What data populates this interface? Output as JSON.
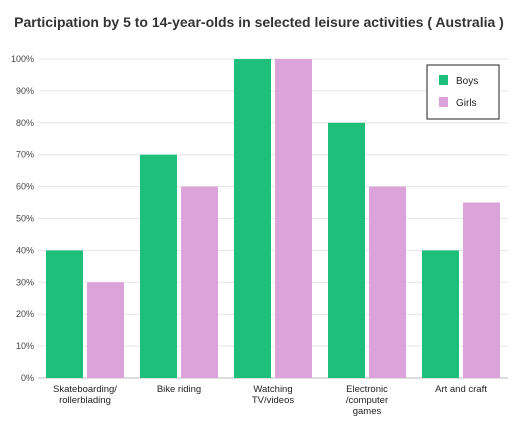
{
  "chart_data": {
    "type": "bar",
    "title": "Participation by 5 to 14-year-olds in selected leisure activities ( Australia )",
    "xlabel": "",
    "ylabel": "",
    "ylim": [
      0,
      100
    ],
    "yticks": [
      "0%",
      "10%",
      "20%",
      "30%",
      "40%",
      "50%",
      "60%",
      "70%",
      "80%",
      "90%",
      "100%"
    ],
    "categories": [
      [
        "Skateboarding/",
        "rollerblading"
      ],
      [
        "Bike riding"
      ],
      [
        "Watching",
        "TV/videos"
      ],
      [
        "Electronic",
        "/computer",
        "games"
      ],
      [
        "Art and craft"
      ]
    ],
    "series": [
      {
        "name": "Boys",
        "color": "#1dbf7a",
        "values": [
          40,
          70,
          100,
          80,
          40
        ]
      },
      {
        "name": "Girls",
        "color": "#dca3db",
        "values": [
          30,
          60,
          100,
          60,
          55
        ]
      }
    ],
    "grid": true,
    "legend_position": "top-right"
  }
}
